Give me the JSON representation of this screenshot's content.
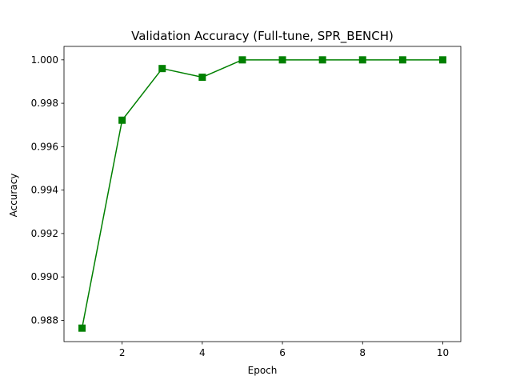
{
  "chart_data": {
    "type": "line",
    "title": "Validation Accuracy (Full-tune, SPR_BENCH)",
    "xlabel": "Epoch",
    "ylabel": "Accuracy",
    "xlim": [
      0.55,
      10.45
    ],
    "ylim": [
      0.98702,
      1.00062
    ],
    "x_ticks": [
      2,
      4,
      6,
      8,
      10
    ],
    "y_ticks": [
      0.988,
      0.99,
      0.992,
      0.994,
      0.996,
      0.998,
      1.0
    ],
    "y_tick_labels": [
      "0.988",
      "0.990",
      "0.992",
      "0.994",
      "0.996",
      "0.998",
      "1.000"
    ],
    "grid": false,
    "series": [
      {
        "color": "#008000",
        "marker": "square",
        "x": [
          1,
          2,
          3,
          4,
          5,
          6,
          7,
          8,
          9,
          10
        ],
        "y": [
          0.98764,
          0.99722,
          0.9996,
          0.9992,
          1.0,
          1.0,
          1.0,
          1.0,
          1.0,
          1.0
        ]
      }
    ]
  }
}
